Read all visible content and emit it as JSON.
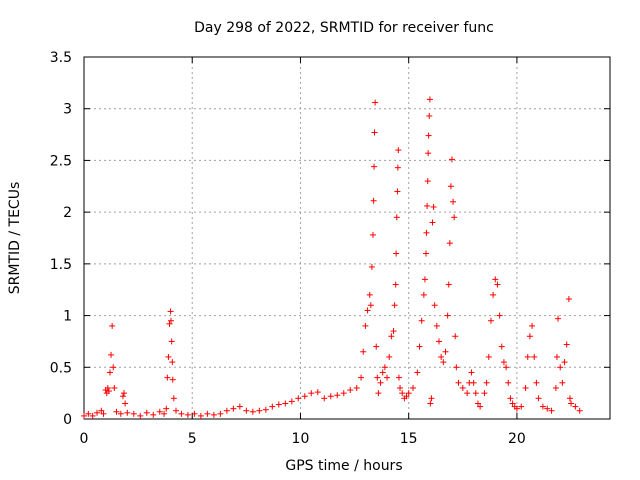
{
  "chart_data": {
    "type": "scatter",
    "title": "Day 298 of 2022, SRMTID for receiver func",
    "xlabel": "GPS time / hours",
    "ylabel": "SRMTID / TECUs",
    "xlim": [
      0,
      24.3
    ],
    "ylim": [
      0,
      3.5
    ],
    "xticks": [
      0,
      5,
      10,
      15,
      20
    ],
    "xtick_labels": [
      "0",
      "5",
      "10",
      "15",
      "20"
    ],
    "yticks": [
      0,
      0.5,
      1,
      1.5,
      2,
      2.5,
      3,
      3.5
    ],
    "ytick_labels": [
      "0",
      "0.5",
      "1",
      "1.5",
      "2",
      "2.5",
      "3",
      "3.5"
    ],
    "grid": true,
    "marker": "+",
    "color": "#ff0000",
    "series": [
      {
        "name": "SRMTID",
        "points": [
          [
            0.0,
            0.03
          ],
          [
            0.2,
            0.05
          ],
          [
            0.4,
            0.03
          ],
          [
            0.6,
            0.06
          ],
          [
            0.8,
            0.08
          ],
          [
            0.9,
            0.05
          ],
          [
            1.0,
            0.28
          ],
          [
            1.05,
            0.25
          ],
          [
            1.1,
            0.3
          ],
          [
            1.15,
            0.27
          ],
          [
            1.2,
            0.45
          ],
          [
            1.25,
            0.62
          ],
          [
            1.3,
            0.9
          ],
          [
            1.35,
            0.5
          ],
          [
            1.4,
            0.3
          ],
          [
            1.5,
            0.07
          ],
          [
            1.7,
            0.05
          ],
          [
            1.8,
            0.22
          ],
          [
            1.85,
            0.25
          ],
          [
            1.9,
            0.15
          ],
          [
            2.0,
            0.06
          ],
          [
            2.3,
            0.05
          ],
          [
            2.6,
            0.03
          ],
          [
            2.9,
            0.06
          ],
          [
            3.2,
            0.04
          ],
          [
            3.5,
            0.07
          ],
          [
            3.7,
            0.05
          ],
          [
            3.8,
            0.1
          ],
          [
            3.85,
            0.4
          ],
          [
            3.9,
            0.6
          ],
          [
            3.95,
            0.92
          ],
          [
            4.0,
            1.04
          ],
          [
            4.02,
            0.95
          ],
          [
            4.05,
            0.75
          ],
          [
            4.08,
            0.55
          ],
          [
            4.1,
            0.38
          ],
          [
            4.15,
            0.2
          ],
          [
            4.25,
            0.08
          ],
          [
            4.5,
            0.05
          ],
          [
            4.8,
            0.04
          ],
          [
            5.1,
            0.05
          ],
          [
            5.4,
            0.03
          ],
          [
            5.7,
            0.05
          ],
          [
            6.0,
            0.04
          ],
          [
            6.3,
            0.05
          ],
          [
            6.6,
            0.08
          ],
          [
            6.9,
            0.1
          ],
          [
            7.2,
            0.12
          ],
          [
            7.5,
            0.08
          ],
          [
            7.8,
            0.07
          ],
          [
            8.1,
            0.08
          ],
          [
            8.4,
            0.09
          ],
          [
            8.7,
            0.12
          ],
          [
            9.0,
            0.14
          ],
          [
            9.3,
            0.15
          ],
          [
            9.6,
            0.17
          ],
          [
            9.9,
            0.2
          ],
          [
            10.2,
            0.22
          ],
          [
            10.5,
            0.25
          ],
          [
            10.8,
            0.26
          ],
          [
            11.1,
            0.2
          ],
          [
            11.4,
            0.22
          ],
          [
            11.7,
            0.23
          ],
          [
            12.0,
            0.25
          ],
          [
            12.3,
            0.28
          ],
          [
            12.6,
            0.3
          ],
          [
            12.8,
            0.4
          ],
          [
            12.9,
            0.65
          ],
          [
            13.0,
            0.9
          ],
          [
            13.1,
            1.05
          ],
          [
            13.2,
            1.2
          ],
          [
            13.25,
            1.1
          ],
          [
            13.3,
            1.47
          ],
          [
            13.35,
            1.78
          ],
          [
            13.38,
            2.11
          ],
          [
            13.4,
            2.44
          ],
          [
            13.42,
            2.77
          ],
          [
            13.45,
            3.06
          ],
          [
            13.5,
            0.7
          ],
          [
            13.55,
            0.4
          ],
          [
            13.6,
            0.25
          ],
          [
            13.7,
            0.35
          ],
          [
            13.8,
            0.45
          ],
          [
            13.9,
            0.5
          ],
          [
            14.0,
            0.4
          ],
          [
            14.1,
            0.6
          ],
          [
            14.2,
            0.8
          ],
          [
            14.3,
            0.85
          ],
          [
            14.35,
            1.1
          ],
          [
            14.4,
            1.3
          ],
          [
            14.42,
            1.6
          ],
          [
            14.45,
            1.95
          ],
          [
            14.48,
            2.2
          ],
          [
            14.5,
            2.43
          ],
          [
            14.52,
            2.6
          ],
          [
            14.55,
            0.4
          ],
          [
            14.6,
            0.3
          ],
          [
            14.7,
            0.25
          ],
          [
            14.8,
            0.2
          ],
          [
            14.9,
            0.22
          ],
          [
            15.0,
            0.25
          ],
          [
            15.2,
            0.3
          ],
          [
            15.4,
            0.45
          ],
          [
            15.5,
            0.7
          ],
          [
            15.6,
            0.95
          ],
          [
            15.7,
            1.2
          ],
          [
            15.75,
            1.35
          ],
          [
            15.8,
            1.6
          ],
          [
            15.82,
            1.8
          ],
          [
            15.85,
            2.06
          ],
          [
            15.88,
            2.3
          ],
          [
            15.9,
            2.57
          ],
          [
            15.92,
            2.74
          ],
          [
            15.95,
            2.93
          ],
          [
            15.98,
            3.09
          ],
          [
            16.0,
            0.15
          ],
          [
            16.05,
            0.2
          ],
          [
            16.1,
            1.9
          ],
          [
            16.15,
            2.05
          ],
          [
            16.2,
            1.1
          ],
          [
            16.3,
            0.9
          ],
          [
            16.4,
            0.75
          ],
          [
            16.5,
            0.6
          ],
          [
            16.6,
            0.55
          ],
          [
            16.7,
            0.65
          ],
          [
            16.8,
            1.0
          ],
          [
            16.85,
            1.3
          ],
          [
            16.9,
            1.7
          ],
          [
            16.95,
            2.25
          ],
          [
            17.0,
            2.51
          ],
          [
            17.05,
            2.1
          ],
          [
            17.1,
            1.95
          ],
          [
            17.15,
            0.8
          ],
          [
            17.2,
            0.5
          ],
          [
            17.3,
            0.35
          ],
          [
            17.5,
            0.3
          ],
          [
            17.7,
            0.25
          ],
          [
            17.8,
            0.35
          ],
          [
            17.9,
            0.45
          ],
          [
            18.0,
            0.35
          ],
          [
            18.1,
            0.25
          ],
          [
            18.2,
            0.15
          ],
          [
            18.3,
            0.12
          ],
          [
            18.5,
            0.25
          ],
          [
            18.6,
            0.35
          ],
          [
            18.7,
            0.6
          ],
          [
            18.8,
            0.95
          ],
          [
            18.9,
            1.2
          ],
          [
            19.0,
            1.35
          ],
          [
            19.1,
            1.3
          ],
          [
            19.2,
            1.0
          ],
          [
            19.3,
            0.7
          ],
          [
            19.4,
            0.55
          ],
          [
            19.5,
            0.5
          ],
          [
            19.6,
            0.35
          ],
          [
            19.7,
            0.2
          ],
          [
            19.8,
            0.15
          ],
          [
            19.9,
            0.12
          ],
          [
            20.0,
            0.1
          ],
          [
            20.2,
            0.12
          ],
          [
            20.4,
            0.3
          ],
          [
            20.5,
            0.6
          ],
          [
            20.6,
            0.8
          ],
          [
            20.7,
            0.9
          ],
          [
            20.8,
            0.6
          ],
          [
            20.9,
            0.35
          ],
          [
            21.0,
            0.2
          ],
          [
            21.2,
            0.12
          ],
          [
            21.4,
            0.1
          ],
          [
            21.6,
            0.08
          ],
          [
            21.8,
            0.3
          ],
          [
            21.85,
            0.6
          ],
          [
            21.9,
            0.97
          ],
          [
            22.0,
            0.5
          ],
          [
            22.1,
            0.35
          ],
          [
            22.2,
            0.55
          ],
          [
            22.3,
            0.72
          ],
          [
            22.4,
            1.16
          ],
          [
            22.45,
            0.2
          ],
          [
            22.5,
            0.15
          ],
          [
            22.7,
            0.12
          ],
          [
            22.9,
            0.08
          ]
        ]
      }
    ]
  }
}
